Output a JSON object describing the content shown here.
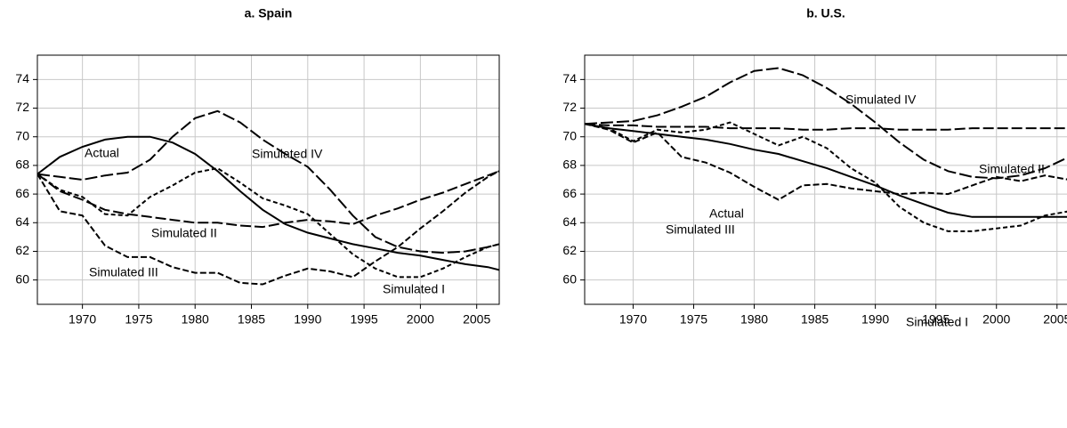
{
  "chart_data": [
    {
      "type": "line",
      "title": "a. Spain",
      "x": [
        1966,
        1968,
        1970,
        1972,
        1974,
        1976,
        1978,
        1980,
        1982,
        1984,
        1986,
        1988,
        1990,
        1992,
        1994,
        1996,
        1998,
        2000,
        2002,
        2004,
        2006,
        2007
      ],
      "series": [
        {
          "name": "Actual",
          "color": "#000000",
          "values": [
            67.4,
            68.6,
            69.3,
            69.8,
            70.0,
            70.0,
            69.6,
            68.8,
            67.6,
            66.2,
            64.9,
            63.9,
            63.3,
            62.9,
            62.5,
            62.2,
            61.9,
            61.7,
            61.4,
            61.1,
            60.9,
            60.7
          ]
        },
        {
          "name": "Simulated I",
          "color": "#000000",
          "values": [
            67.4,
            66.3,
            65.8,
            64.6,
            64.5,
            65.8,
            66.6,
            67.5,
            67.8,
            66.8,
            65.7,
            65.2,
            64.6,
            63.2,
            61.8,
            60.8,
            60.2,
            60.2,
            60.8,
            61.6,
            62.3,
            62.5
          ]
        },
        {
          "name": "Simulated II",
          "color": "#000000",
          "values": [
            67.4,
            66.2,
            65.6,
            64.9,
            64.6,
            64.4,
            64.2,
            64.0,
            64.0,
            63.8,
            63.7,
            64.0,
            64.2,
            64.1,
            63.9,
            64.5,
            65.0,
            65.6,
            66.1,
            66.7,
            67.3,
            67.6
          ]
        },
        {
          "name": "Simulated III",
          "color": "#000000",
          "values": [
            67.4,
            64.8,
            64.5,
            62.4,
            61.6,
            61.6,
            60.9,
            60.5,
            60.5,
            59.8,
            59.7,
            60.3,
            60.8,
            60.6,
            60.2,
            61.3,
            62.3,
            63.6,
            64.8,
            66.1,
            67.2,
            67.6
          ]
        },
        {
          "name": "Simulated IV",
          "color": "#000000",
          "values": [
            67.4,
            67.2,
            67.0,
            67.3,
            67.5,
            68.4,
            70.0,
            71.3,
            71.8,
            71.0,
            69.8,
            68.8,
            67.9,
            66.3,
            64.5,
            63.0,
            62.3,
            62.0,
            61.9,
            62.0,
            62.3,
            62.5
          ]
        }
      ],
      "xlim": [
        1966,
        2007
      ],
      "xticks": [
        1970,
        1975,
        1980,
        1985,
        1990,
        1995,
        2000,
        2005
      ],
      "ylim": [
        58.3,
        75.7
      ],
      "yticks": [
        60,
        62,
        64,
        66,
        68,
        70,
        72,
        74
      ],
      "grid": true
    },
    {
      "type": "line",
      "title": "b. U.S.",
      "x": [
        1966,
        1968,
        1970,
        1972,
        1974,
        1976,
        1978,
        1980,
        1982,
        1984,
        1986,
        1988,
        1990,
        1992,
        1994,
        1996,
        1998,
        2000,
        2002,
        2004,
        2006,
        2007
      ],
      "series": [
        {
          "name": "Actual",
          "color": "#000000",
          "values": [
            70.9,
            70.6,
            70.4,
            70.2,
            70.0,
            69.8,
            69.5,
            69.1,
            68.8,
            68.3,
            67.8,
            67.2,
            66.6,
            65.9,
            65.3,
            64.7,
            64.4,
            64.4,
            64.4,
            64.4,
            64.4,
            64.3
          ]
        },
        {
          "name": "Simulated I",
          "color": "#000000",
          "values": [
            70.9,
            70.6,
            69.7,
            70.5,
            70.3,
            70.5,
            71.0,
            70.2,
            69.4,
            70.0,
            69.2,
            67.8,
            66.8,
            65.1,
            64.0,
            63.4,
            63.4,
            63.6,
            63.8,
            64.5,
            64.8,
            65.0
          ]
        },
        {
          "name": "Simulated II",
          "color": "#000000",
          "values": [
            70.9,
            70.8,
            70.8,
            70.7,
            70.7,
            70.7,
            70.6,
            70.6,
            70.6,
            70.5,
            70.5,
            70.6,
            70.6,
            70.5,
            70.5,
            70.5,
            70.6,
            70.6,
            70.6,
            70.6,
            70.6,
            70.5
          ]
        },
        {
          "name": "Simulated III",
          "color": "#000000",
          "values": [
            70.9,
            70.5,
            69.6,
            70.3,
            68.6,
            68.2,
            67.5,
            66.5,
            65.6,
            66.6,
            66.7,
            66.4,
            66.2,
            66.0,
            66.1,
            66.0,
            66.6,
            67.2,
            66.9,
            67.3,
            67.0,
            66.5
          ]
        },
        {
          "name": "Simulated IV",
          "color": "#000000",
          "values": [
            70.9,
            71.0,
            71.1,
            71.5,
            72.1,
            72.8,
            73.8,
            74.6,
            74.8,
            74.3,
            73.4,
            72.3,
            71.0,
            69.6,
            68.4,
            67.6,
            67.2,
            67.1,
            67.3,
            67.8,
            68.6,
            69.3
          ]
        }
      ],
      "xlim": [
        1966,
        2007
      ],
      "xticks": [
        1970,
        1975,
        1980,
        1985,
        1990,
        1995,
        2000,
        2005
      ],
      "ylim": [
        58.3,
        75.7
      ],
      "yticks": [
        60,
        62,
        64,
        66,
        68,
        70,
        72,
        74
      ],
      "grid": true
    }
  ]
}
